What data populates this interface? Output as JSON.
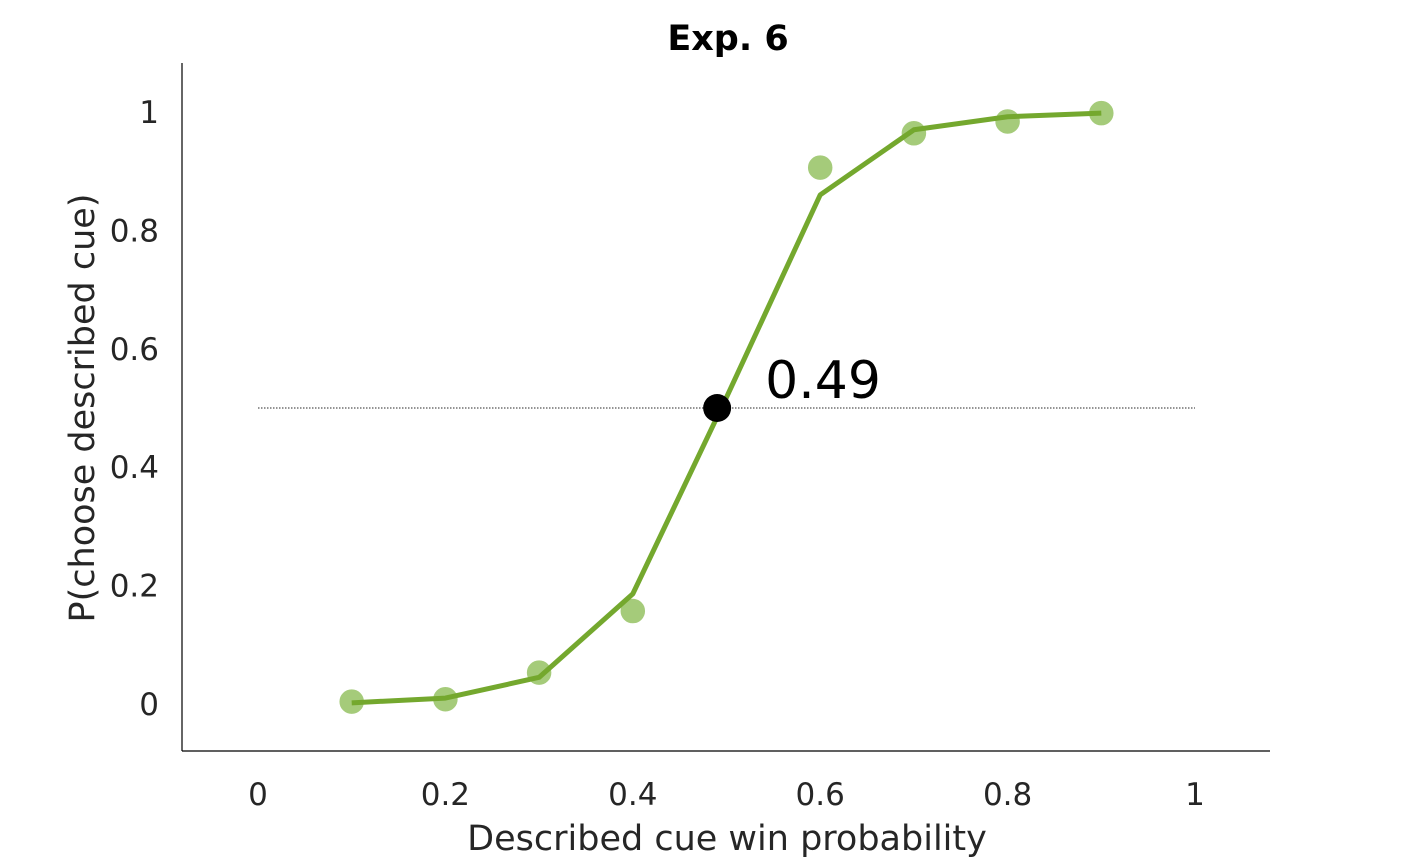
{
  "chart_data": {
    "type": "line",
    "title": "Exp. 6",
    "xlabel": "Described cue win probability",
    "ylabel": "P(choose described cue)",
    "xlim": [
      -0.08,
      1.08
    ],
    "ylim": [
      -0.08,
      1.08
    ],
    "xticks": [
      0,
      0.2,
      0.4,
      0.6,
      0.8,
      1
    ],
    "xtick_labels": [
      "0",
      "0.2",
      "0.4",
      "0.6",
      "0.8",
      "1"
    ],
    "yticks": [
      0,
      0.2,
      0.4,
      0.6,
      0.8,
      1
    ],
    "ytick_labels": [
      "0",
      "0.2",
      "0.4",
      "0.6",
      "0.8",
      "1"
    ],
    "grid": false,
    "series": [
      {
        "kind": "scatter",
        "color": "#a5cb7a",
        "x": [
          0.1,
          0.2,
          0.3,
          0.4,
          0.6,
          0.7,
          0.8,
          0.9
        ],
        "y": [
          0.004,
          0.008,
          0.053,
          0.157,
          0.906,
          0.964,
          0.984,
          0.998
        ]
      },
      {
        "kind": "line",
        "color": "#74a82e",
        "x": [
          0.1,
          0.2,
          0.3,
          0.4,
          0.5,
          0.6,
          0.7,
          0.8,
          0.9
        ],
        "y": [
          0.002,
          0.01,
          0.045,
          0.186,
          0.518,
          0.86,
          0.97,
          0.992,
          0.998
        ]
      }
    ],
    "reference_line": {
      "y": 0.5,
      "x_range": [
        0,
        1
      ],
      "style": "dotted",
      "color": "#555555"
    },
    "marker": {
      "x": 0.49,
      "y": 0.5,
      "color": "#000000"
    },
    "annotation": {
      "text": "0.49",
      "x": 0.49,
      "y": 0.5
    }
  }
}
